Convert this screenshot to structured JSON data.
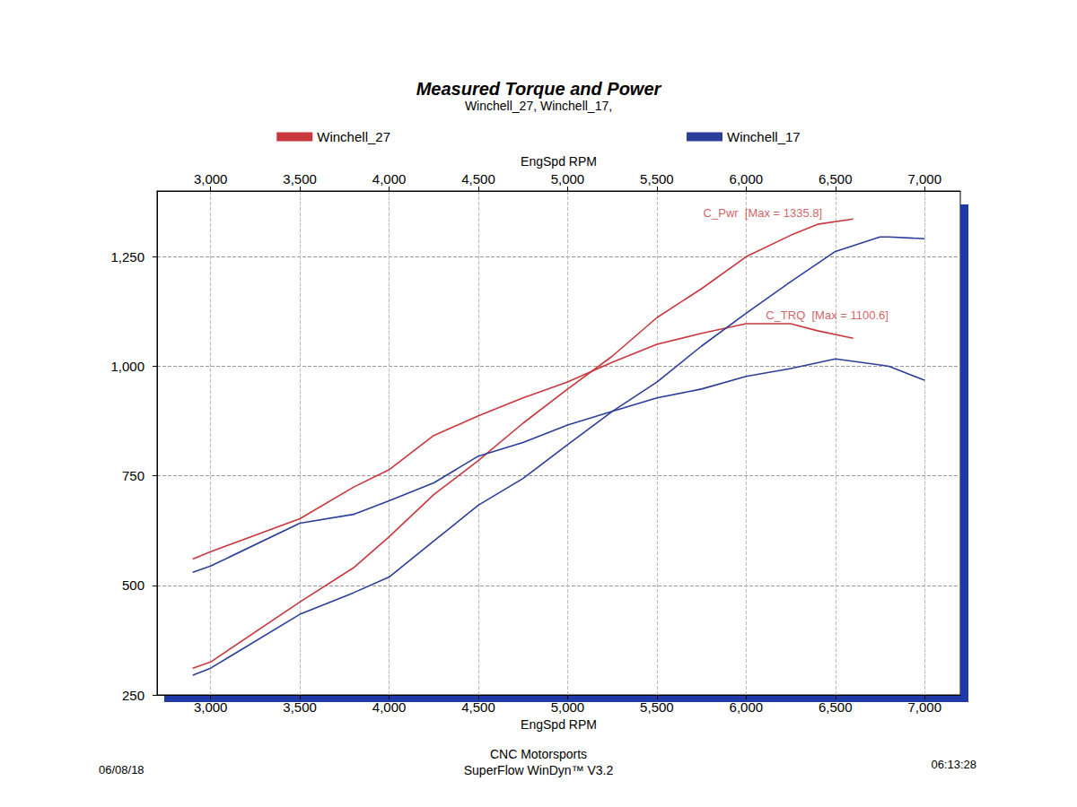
{
  "chart_data": {
    "type": "line",
    "title": "Measured Torque and Power",
    "subtitle": "Winchell_27, Winchell_17,",
    "xlabel": "EngSpd RPM",
    "xlim": [
      2700,
      7200
    ],
    "xticks": [
      3000,
      3500,
      4000,
      4500,
      5000,
      5500,
      6000,
      6500,
      7000
    ],
    "ylim": [
      250,
      1400
    ],
    "yticks": [
      250,
      500,
      750,
      1000,
      1250
    ],
    "grid": true,
    "legend": "top",
    "series": [
      {
        "name": "Winchell_27",
        "color": "#c8383c",
        "x": [
          2900,
          3000,
          3500,
          3800,
          4000,
          4250,
          4500,
          4750,
          5000,
          5250,
          5500,
          5750,
          6000,
          6250,
          6400,
          6600
        ],
        "power": [
          311,
          325,
          462,
          540,
          611,
          707,
          785,
          870,
          948,
          1023,
          1111,
          1177,
          1250,
          1299,
          1324,
          1336
        ],
        "torque": [
          560,
          577,
          652,
          724,
          764,
          842,
          887,
          928,
          964,
          1009,
          1050,
          1075,
          1097,
          1097,
          1081,
          1064
        ]
      },
      {
        "name": "Winchell_17",
        "color": "#2c3e99",
        "x": [
          2900,
          3000,
          3500,
          3800,
          4000,
          4250,
          4500,
          4750,
          5000,
          5250,
          5500,
          5750,
          6000,
          6250,
          6500,
          6750,
          6800,
          7000
        ],
        "power": [
          295,
          311,
          434,
          483,
          519,
          601,
          683,
          744,
          821,
          897,
          964,
          1046,
          1121,
          1193,
          1262,
          1295,
          1295,
          1291
        ],
        "torque": [
          530,
          544,
          642,
          662,
          693,
          734,
          795,
          826,
          866,
          897,
          928,
          948,
          977,
          995,
          1017,
          1003,
          1000,
          968
        ]
      }
    ],
    "annotations": [
      {
        "text": "C_Pwr  [Max = 1335.8]",
        "x": 5750,
        "y": 1350,
        "color": "#c8383c"
      },
      {
        "text": "C_TRQ  [Max = 1100.6]",
        "x": 6100,
        "y": 1117,
        "color": "#c8383c"
      }
    ],
    "footer": {
      "source": "CNC Motorsports",
      "software": "SuperFlow WinDyn™ V3.2",
      "date": "06/08/18",
      "time": "06:13:28"
    }
  }
}
